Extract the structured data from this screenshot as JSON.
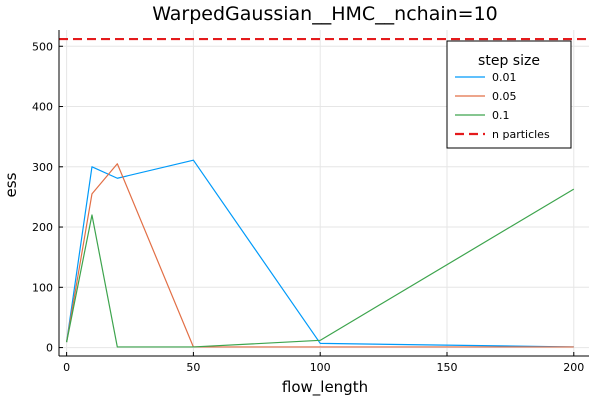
{
  "chart_data": {
    "type": "line",
    "title": "WarpedGaussian__HMC__nchain=10",
    "xlabel": "flow_length",
    "ylabel": "ess",
    "xlim": [
      -3,
      206
    ],
    "ylim": [
      -14,
      527
    ],
    "xticks": [
      0,
      50,
      100,
      150,
      200
    ],
    "yticks": [
      0,
      100,
      200,
      300,
      400,
      500
    ],
    "grid": true,
    "legend": {
      "title": "step size",
      "placement": "top-right"
    },
    "series": [
      {
        "name": "0.01",
        "color": "#009af9",
        "dash": "solid",
        "x": [
          0,
          10,
          20,
          50,
          100,
          200
        ],
        "y": [
          9,
          300,
          281,
          311,
          7,
          1
        ]
      },
      {
        "name": "0.05",
        "color": "#e26f46",
        "dash": "solid",
        "x": [
          0,
          10,
          20,
          50,
          100,
          200
        ],
        "y": [
          9,
          255,
          305,
          1,
          1,
          1
        ]
      },
      {
        "name": "0.1",
        "color": "#3da44d",
        "dash": "solid",
        "x": [
          0,
          10,
          20,
          50,
          100,
          200
        ],
        "y": [
          9,
          220,
          1,
          1,
          12,
          263
        ]
      },
      {
        "name": "n particles",
        "color": "#e41a1c",
        "dash": "dashed",
        "hline": 512
      }
    ]
  }
}
